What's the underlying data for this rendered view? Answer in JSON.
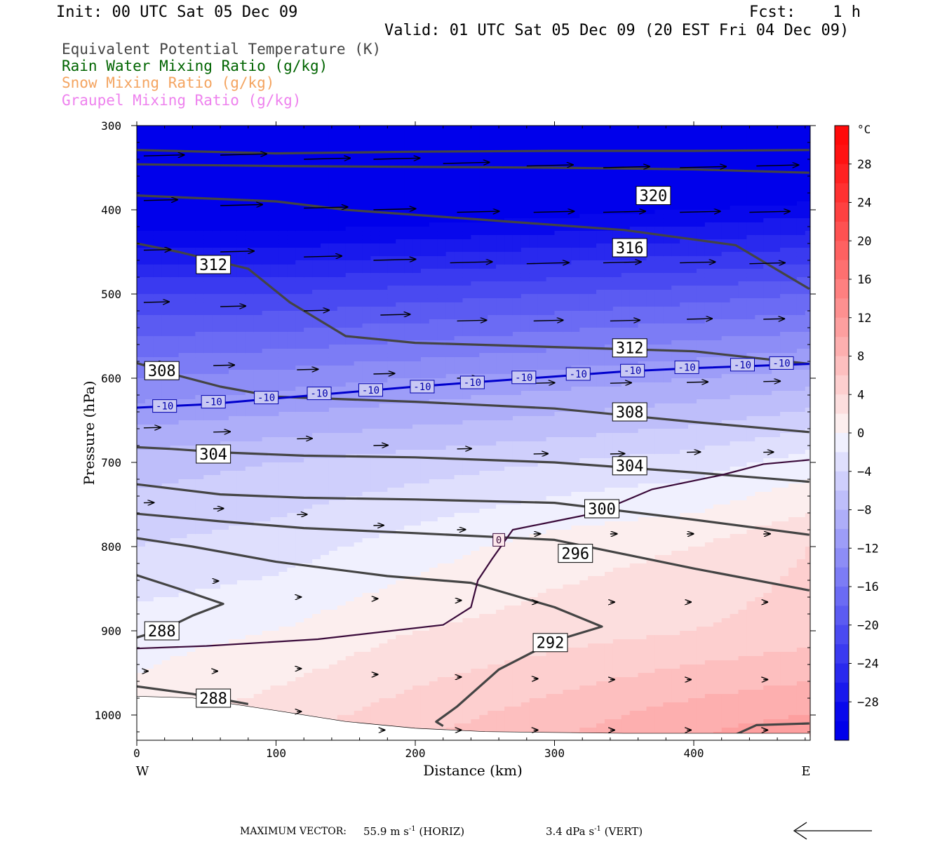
{
  "header": {
    "init": "Init: 00 UTC Sat 05 Dec 09",
    "fcst": "Fcst:    1 h",
    "valid": "Valid: 01 UTC Sat 05 Dec 09 (20 EST Fri 04 Dec 09)"
  },
  "legend": {
    "items": [
      {
        "label": "Equivalent Potential Temperature (K)",
        "color": "#444444"
      },
      {
        "label": "Rain Water Mixing Ratio (g/kg)",
        "color": "#006400"
      },
      {
        "label": "Snow Mixing Ratio (g/kg)",
        "color": "#f4a460"
      },
      {
        "label": "Graupel Mixing Ratio (g/kg)",
        "color": "#ee82ee"
      }
    ]
  },
  "chart_data": {
    "type": "heatmap",
    "xlabel": "Distance (km)",
    "ylabel": "Pressure (hPa)",
    "xlim": [
      0,
      483
    ],
    "ylim": [
      1030,
      300
    ],
    "x_ticks": [
      0,
      100,
      200,
      300,
      400
    ],
    "y_ticks": [
      300,
      400,
      500,
      600,
      700,
      800,
      900,
      1000
    ],
    "x_end_labels": {
      "left": "W",
      "right": "E"
    },
    "colorbar": {
      "unit": "°C",
      "levels": [
        -32,
        -30,
        -28,
        -26,
        -24,
        -22,
        -20,
        -18,
        -16,
        -14,
        -12,
        -10,
        -8,
        -6,
        -4,
        -2,
        0,
        2,
        4,
        6,
        8,
        10,
        12,
        14,
        16,
        18,
        20,
        22,
        24,
        26,
        28,
        30,
        32
      ],
      "tick_labels": [
        28,
        24,
        20,
        16,
        12,
        8,
        4,
        0,
        -4,
        -8,
        -12,
        -16,
        -20,
        -24,
        -28
      ]
    },
    "temperature_field": {
      "x": [
        0,
        100,
        200,
        300,
        400,
        483
      ],
      "p": [
        300,
        400,
        500,
        600,
        700,
        800,
        900,
        1000,
        1030
      ],
      "values": [
        [
          -44,
          -44,
          -43,
          -42,
          -41,
          -41
        ],
        [
          -33,
          -33,
          -32,
          -31,
          -30,
          -29
        ],
        [
          -22,
          -22,
          -21,
          -20,
          -19,
          -18
        ],
        [
          -14,
          -13,
          -12,
          -11,
          -10,
          -9
        ],
        [
          -7,
          -6,
          -5,
          -4,
          -3,
          -1
        ],
        [
          -4,
          -3,
          -1,
          1,
          2,
          4
        ],
        [
          -1,
          0,
          2,
          3,
          4,
          5
        ],
        [
          1,
          3,
          5,
          7,
          9,
          10
        ],
        [
          2,
          4,
          6,
          8,
          10,
          12
        ]
      ]
    },
    "theta_e_contours": [
      {
        "value": 320,
        "points": [
          [
            0,
            329
          ],
          [
            100,
            333
          ],
          [
            200,
            331
          ],
          [
            300,
            330
          ],
          [
            400,
            330
          ],
          [
            483,
            329
          ]
        ]
      },
      {
        "value": 320,
        "points": [
          [
            0,
            346
          ],
          [
            100,
            348
          ],
          [
            200,
            349
          ],
          [
            300,
            350
          ],
          [
            400,
            352
          ],
          [
            483,
            356
          ]
        ],
        "label": "320",
        "label_at": [
          371,
          383
        ]
      },
      {
        "value": 316,
        "points": [
          [
            0,
            383
          ],
          [
            100,
            390
          ],
          [
            150,
            400
          ],
          [
            250,
            412
          ],
          [
            350,
            424
          ],
          [
            430,
            442
          ],
          [
            483,
            494
          ]
        ],
        "label": "316",
        "label_at": [
          354,
          445
        ]
      },
      {
        "value": 312,
        "points": [
          [
            0,
            440
          ],
          [
            30,
            450
          ],
          [
            80,
            470
          ],
          [
            110,
            510
          ],
          [
            150,
            550
          ],
          [
            200,
            558
          ],
          [
            300,
            563
          ],
          [
            400,
            568
          ],
          [
            483,
            583
          ]
        ],
        "label": "312",
        "label_at": [
          55,
          465
        ],
        "label2": "312",
        "label2_at": [
          354,
          564
        ]
      },
      {
        "value": 308,
        "points": [
          [
            0,
            582
          ],
          [
            30,
            597
          ],
          [
            60,
            610
          ],
          [
            100,
            622
          ],
          [
            200,
            628
          ],
          [
            300,
            636
          ],
          [
            400,
            652
          ],
          [
            483,
            664
          ]
        ],
        "label": "308",
        "label_at": [
          18,
          591
        ],
        "label2": "308",
        "label2_at": [
          354,
          640
        ]
      },
      {
        "value": 304,
        "points": [
          [
            0,
            682
          ],
          [
            25,
            684
          ],
          [
            60,
            688
          ],
          [
            120,
            692
          ],
          [
            200,
            694
          ],
          [
            300,
            700
          ],
          [
            400,
            712
          ],
          [
            483,
            723
          ]
        ],
        "label": "304",
        "label_at": [
          55,
          690
        ],
        "label2": "304",
        "label2_at": [
          354,
          704
        ]
      },
      {
        "value": 300,
        "points": [
          [
            0,
            726
          ],
          [
            60,
            738
          ],
          [
            120,
            742
          ],
          [
            200,
            744
          ],
          [
            300,
            748
          ],
          [
            400,
            768
          ],
          [
            483,
            786
          ]
        ],
        "label": "300",
        "label_at": [
          334,
          755
        ]
      },
      {
        "value": 296,
        "points": [
          [
            0,
            761
          ],
          [
            60,
            770
          ],
          [
            120,
            778
          ],
          [
            200,
            784
          ],
          [
            300,
            792
          ],
          [
            400,
            826
          ],
          [
            483,
            852
          ]
        ],
        "label": "296",
        "label_at": [
          315,
          808
        ]
      },
      {
        "value": 292,
        "points": [
          [
            0,
            790
          ],
          [
            40,
            800
          ],
          [
            100,
            818
          ],
          [
            180,
            835
          ],
          [
            240,
            843
          ],
          [
            300,
            872
          ],
          [
            334,
            895
          ],
          [
            300,
            912
          ],
          [
            260,
            946
          ],
          [
            230,
            990
          ],
          [
            215,
            1008
          ],
          [
            220,
            1013
          ]
        ],
        "label": "292",
        "label_at": [
          297,
          914
        ]
      },
      {
        "value": 288,
        "points": [
          [
            0,
            908
          ],
          [
            20,
            898
          ],
          [
            40,
            882
          ],
          [
            62,
            868
          ],
          [
            30,
            850
          ],
          [
            0,
            834
          ]
        ],
        "label": "288",
        "label_at": [
          18,
          900
        ]
      },
      {
        "value": 288,
        "points": [
          [
            0,
            966
          ],
          [
            40,
            975
          ],
          [
            80,
            987
          ]
        ],
        "label": "288",
        "label_at": [
          55,
          980
        ]
      },
      {
        "value": 288,
        "points": [
          [
            425,
            1027
          ],
          [
            445,
            1012
          ],
          [
            483,
            1010
          ]
        ]
      }
    ],
    "isotherm_minus10": {
      "label": "-10",
      "points": [
        [
          0,
          635
        ],
        [
          50,
          631
        ],
        [
          100,
          624
        ],
        [
          150,
          617
        ],
        [
          200,
          610
        ],
        [
          250,
          604
        ],
        [
          300,
          598
        ],
        [
          350,
          592
        ],
        [
          400,
          588
        ],
        [
          483,
          583
        ]
      ],
      "label_points": [
        [
          20,
          633
        ],
        [
          55,
          628
        ],
        [
          93,
          623
        ],
        [
          131,
          618
        ],
        [
          168,
          614
        ],
        [
          205,
          610
        ],
        [
          241,
          605
        ],
        [
          278,
          599
        ],
        [
          317,
          595
        ],
        [
          356,
          591
        ],
        [
          395,
          587
        ],
        [
          435,
          584
        ],
        [
          463,
          582
        ]
      ]
    },
    "isotherm_zero": {
      "label": "0",
      "points": [
        [
          0,
          921
        ],
        [
          50,
          918
        ],
        [
          130,
          910
        ],
        [
          220,
          893
        ],
        [
          240,
          872
        ],
        [
          245,
          840
        ],
        [
          255,
          815
        ],
        [
          270,
          780
        ],
        [
          300,
          770
        ],
        [
          330,
          760
        ],
        [
          370,
          732
        ],
        [
          420,
          715
        ],
        [
          450,
          702
        ],
        [
          483,
          697
        ]
      ],
      "label_at": [
        260,
        792
      ]
    },
    "surface_line": [
      [
        0,
        978
      ],
      [
        40,
        980
      ],
      [
        100,
        995
      ],
      [
        150,
        1008
      ],
      [
        200,
        1016
      ],
      [
        250,
        1020
      ],
      [
        350,
        1022
      ],
      [
        483,
        1022
      ]
    ],
    "wind_arrows": [
      {
        "x": 5,
        "p": 336,
        "len": 48
      },
      {
        "x": 60,
        "p": 335,
        "len": 55
      },
      {
        "x": 120,
        "p": 340,
        "len": 55
      },
      {
        "x": 170,
        "p": 340,
        "len": 55
      },
      {
        "x": 220,
        "p": 345,
        "len": 55
      },
      {
        "x": 280,
        "p": 348,
        "len": 55
      },
      {
        "x": 335,
        "p": 350,
        "len": 55
      },
      {
        "x": 390,
        "p": 350,
        "len": 55
      },
      {
        "x": 445,
        "p": 348,
        "len": 50
      },
      {
        "x": 5,
        "p": 389,
        "len": 40
      },
      {
        "x": 60,
        "p": 395,
        "len": 50
      },
      {
        "x": 120,
        "p": 398,
        "len": 52
      },
      {
        "x": 170,
        "p": 400,
        "len": 50
      },
      {
        "x": 230,
        "p": 403,
        "len": 50
      },
      {
        "x": 285,
        "p": 403,
        "len": 48
      },
      {
        "x": 335,
        "p": 403,
        "len": 50
      },
      {
        "x": 390,
        "p": 403,
        "len": 48
      },
      {
        "x": 440,
        "p": 403,
        "len": 48
      },
      {
        "x": 5,
        "p": 448,
        "len": 32
      },
      {
        "x": 60,
        "p": 450,
        "len": 40
      },
      {
        "x": 120,
        "p": 456,
        "len": 45
      },
      {
        "x": 170,
        "p": 460,
        "len": 50
      },
      {
        "x": 225,
        "p": 463,
        "len": 50
      },
      {
        "x": 280,
        "p": 464,
        "len": 50
      },
      {
        "x": 335,
        "p": 463,
        "len": 45
      },
      {
        "x": 390,
        "p": 463,
        "len": 42
      },
      {
        "x": 440,
        "p": 464,
        "len": 42
      },
      {
        "x": 5,
        "p": 510,
        "len": 30
      },
      {
        "x": 60,
        "p": 515,
        "len": 30
      },
      {
        "x": 120,
        "p": 520,
        "len": 30
      },
      {
        "x": 175,
        "p": 525,
        "len": 35
      },
      {
        "x": 230,
        "p": 532,
        "len": 35
      },
      {
        "x": 285,
        "p": 532,
        "len": 35
      },
      {
        "x": 340,
        "p": 532,
        "len": 35
      },
      {
        "x": 395,
        "p": 530,
        "len": 30
      },
      {
        "x": 450,
        "p": 530,
        "len": 25
      },
      {
        "x": 5,
        "p": 583,
        "len": 25
      },
      {
        "x": 55,
        "p": 585,
        "len": 25
      },
      {
        "x": 115,
        "p": 590,
        "len": 25
      },
      {
        "x": 170,
        "p": 595,
        "len": 25
      },
      {
        "x": 230,
        "p": 600,
        "len": 25
      },
      {
        "x": 285,
        "p": 606,
        "len": 25
      },
      {
        "x": 340,
        "p": 606,
        "len": 25
      },
      {
        "x": 395,
        "p": 605,
        "len": 25
      },
      {
        "x": 450,
        "p": 604,
        "len": 20
      },
      {
        "x": 5,
        "p": 659,
        "len": 20
      },
      {
        "x": 55,
        "p": 664,
        "len": 20
      },
      {
        "x": 115,
        "p": 672,
        "len": 18
      },
      {
        "x": 170,
        "p": 680,
        "len": 17
      },
      {
        "x": 230,
        "p": 684,
        "len": 17
      },
      {
        "x": 285,
        "p": 690,
        "len": 17
      },
      {
        "x": 340,
        "p": 690,
        "len": 17
      },
      {
        "x": 395,
        "p": 688,
        "len": 16
      },
      {
        "x": 450,
        "p": 688,
        "len": 12
      },
      {
        "x": 5,
        "p": 748,
        "len": 12
      },
      {
        "x": 55,
        "p": 755,
        "len": 12
      },
      {
        "x": 115,
        "p": 762,
        "len": 12
      },
      {
        "x": 170,
        "p": 775,
        "len": 12
      },
      {
        "x": 230,
        "p": 780,
        "len": 10
      },
      {
        "x": 285,
        "p": 785,
        "len": 8
      },
      {
        "x": 340,
        "p": 785,
        "len": 8
      },
      {
        "x": 395,
        "p": 785,
        "len": 8
      },
      {
        "x": 450,
        "p": 785,
        "len": 8
      },
      {
        "x": 55,
        "p": 841,
        "len": 6
      },
      {
        "x": 115,
        "p": 860,
        "len": 5
      },
      {
        "x": 170,
        "p": 862,
        "len": 5
      },
      {
        "x": 230,
        "p": 864,
        "len": 5
      },
      {
        "x": 285,
        "p": 866,
        "len": 5
      },
      {
        "x": 340,
        "p": 866,
        "len": 5
      },
      {
        "x": 395,
        "p": 866,
        "len": 5
      },
      {
        "x": 450,
        "p": 866,
        "len": 5
      },
      {
        "x": 5,
        "p": 948,
        "len": 5
      },
      {
        "x": 55,
        "p": 948,
        "len": 5
      },
      {
        "x": 115,
        "p": 945,
        "len": 5
      },
      {
        "x": 170,
        "p": 952,
        "len": 5
      },
      {
        "x": 230,
        "p": 955,
        "len": 5
      },
      {
        "x": 285,
        "p": 957,
        "len": 5
      },
      {
        "x": 340,
        "p": 958,
        "len": 5
      },
      {
        "x": 395,
        "p": 958,
        "len": 5
      },
      {
        "x": 450,
        "p": 958,
        "len": 5
      },
      {
        "x": 115,
        "p": 996,
        "len": 5
      },
      {
        "x": 175,
        "p": 1018,
        "len": 5
      },
      {
        "x": 230,
        "p": 1018,
        "len": 5
      },
      {
        "x": 285,
        "p": 1018,
        "len": 5
      },
      {
        "x": 340,
        "p": 1018,
        "len": 5
      },
      {
        "x": 395,
        "p": 1018,
        "len": 5
      },
      {
        "x": 450,
        "p": 1018,
        "len": 5
      }
    ]
  },
  "footer": {
    "max_vector_label": "MAXIMUM VECTOR:",
    "horiz_value": "55.9",
    "horiz_unit": "m s",
    "horiz_tag": "(HORIZ)",
    "vert_value": "3.4",
    "vert_unit": "dPa s",
    "vert_tag": "(VERT)",
    "exponent": "-1"
  }
}
